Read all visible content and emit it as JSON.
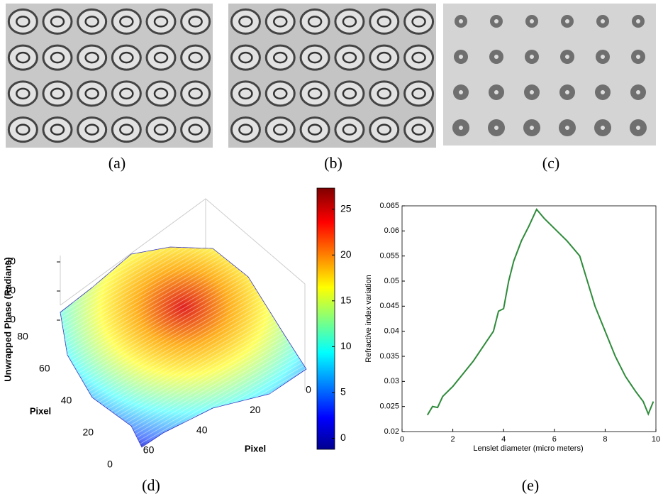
{
  "captions": [
    "(a)",
    "(b)",
    "(c)",
    "(d)",
    "(e)"
  ],
  "chart_data": [
    {
      "type": "surface3d",
      "zlabel": "Unwrapped Phase (Radians)",
      "xlabel": "Pixel",
      "ylabel": "Pixel",
      "zlim": [
        0,
        20
      ],
      "zticks": [
        0,
        10,
        20
      ],
      "ylim": [
        0,
        80
      ],
      "yticks": [
        0,
        20,
        40,
        60,
        80
      ],
      "xlim": [
        0,
        70
      ],
      "xticks": [
        0,
        20,
        40,
        60
      ],
      "colormap": "jet",
      "clim": [
        -1.2,
        27.3
      ],
      "cticks": [
        0,
        5,
        10,
        15,
        20,
        25
      ]
    },
    {
      "type": "line",
      "xlabel": "Lenslet diameter (micro meters)",
      "ylabel": "Refractive index variation",
      "color": "#2e8b3a",
      "x": [
        1.0,
        1.2,
        1.4,
        1.6,
        2.0,
        2.4,
        2.8,
        3.2,
        3.6,
        3.8,
        4.0,
        4.2,
        4.4,
        4.7,
        5.0,
        5.3,
        5.6,
        6.0,
        6.5,
        7.0,
        7.3,
        7.6,
        8.0,
        8.4,
        8.8,
        9.2,
        9.5,
        9.7,
        9.9
      ],
      "values": [
        0.0233,
        0.025,
        0.0248,
        0.027,
        0.029,
        0.0315,
        0.034,
        0.037,
        0.04,
        0.044,
        0.0445,
        0.05,
        0.054,
        0.058,
        0.061,
        0.0643,
        0.0625,
        0.0605,
        0.058,
        0.055,
        0.05,
        0.045,
        0.04,
        0.035,
        0.031,
        0.028,
        0.026,
        0.0235,
        0.026
      ],
      "xlim": [
        0,
        10
      ],
      "xticks": [
        0,
        2,
        4,
        6,
        8,
        10
      ],
      "ylim": [
        0.02,
        0.065
      ],
      "yticks": [
        0.02,
        0.025,
        0.03,
        0.035,
        0.04,
        0.045,
        0.05,
        0.055,
        0.06,
        0.065
      ]
    }
  ]
}
